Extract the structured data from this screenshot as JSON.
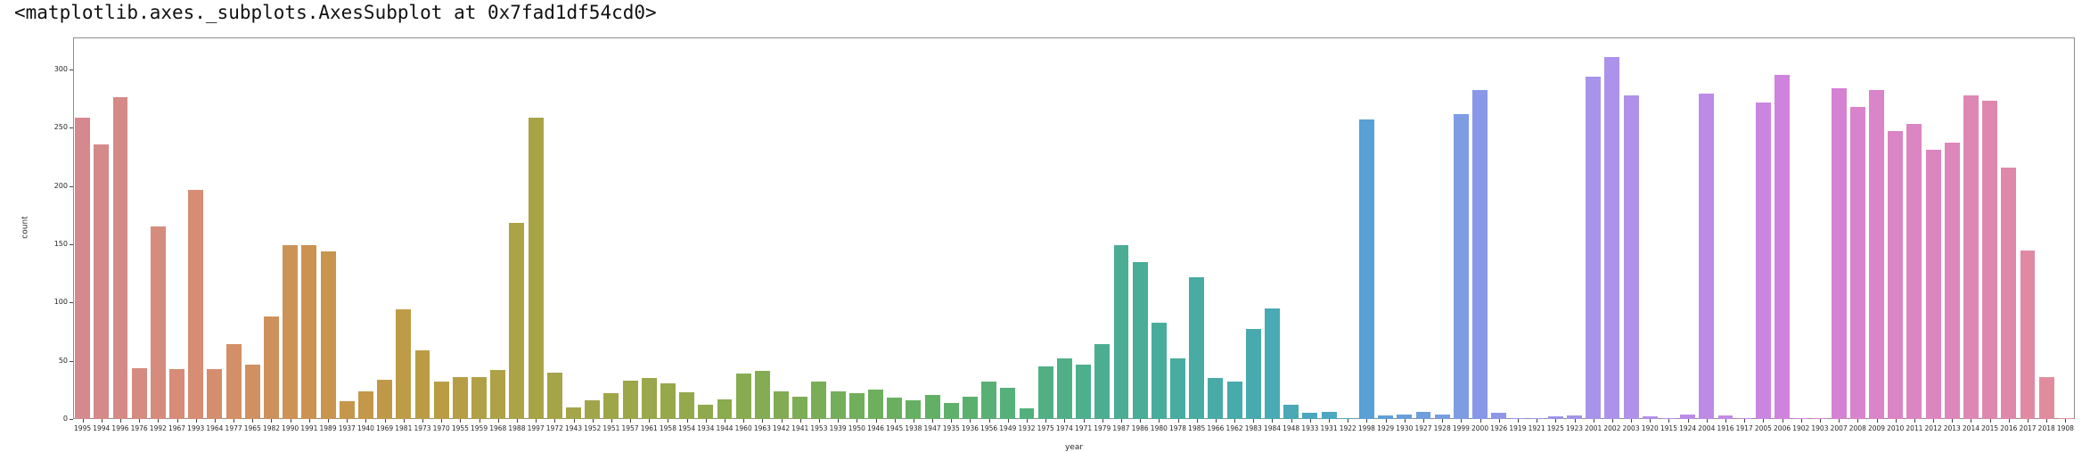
{
  "title": "<matplotlib.axes._subplots.AxesSubplot at 0x7fad1df54cd0>",
  "chart_data": {
    "type": "bar",
    "title": "",
    "xlabel": "year",
    "ylabel": "count",
    "yticks": [
      0,
      50,
      100,
      150,
      200,
      250,
      300
    ],
    "ylim": [
      0,
      327.5
    ],
    "grid": false,
    "legend": "none",
    "categories": [
      "1995",
      "1994",
      "1996",
      "1976",
      "1992",
      "1967",
      "1993",
      "1964",
      "1977",
      "1965",
      "1982",
      "1990",
      "1991",
      "1989",
      "1937",
      "1940",
      "1969",
      "1981",
      "1973",
      "1970",
      "1955",
      "1959",
      "1968",
      "1988",
      "1997",
      "1972",
      "1943",
      "1952",
      "1951",
      "1957",
      "1961",
      "1958",
      "1954",
      "1934",
      "1944",
      "1960",
      "1963",
      "1942",
      "1941",
      "1953",
      "1939",
      "1950",
      "1946",
      "1945",
      "1938",
      "1947",
      "1935",
      "1936",
      "1956",
      "1949",
      "1932",
      "1975",
      "1974",
      "1971",
      "1979",
      "1987",
      "1986",
      "1980",
      "1978",
      "1985",
      "1966",
      "1962",
      "1983",
      "1984",
      "1948",
      "1933",
      "1931",
      "1922",
      "1998",
      "1929",
      "1930",
      "1927",
      "1928",
      "1999",
      "2000",
      "1926",
      "1919",
      "1921",
      "1925",
      "1923",
      "2001",
      "2002",
      "2003",
      "1920",
      "1915",
      "1924",
      "2004",
      "1916",
      "1917",
      "2005",
      "2006",
      "1902",
      "1903",
      "2007",
      "2008",
      "2009",
      "2010",
      "2011",
      "2012",
      "2013",
      "2014",
      "2015",
      "2016",
      "2017",
      "2018",
      "1908"
    ],
    "values": [
      259,
      236,
      276,
      44,
      165,
      43,
      197,
      43,
      64,
      47,
      88,
      149,
      149,
      144,
      15,
      24,
      34,
      94,
      59,
      32,
      36,
      36,
      42,
      168,
      259,
      40,
      10,
      16,
      22,
      33,
      35,
      31,
      23,
      12,
      17,
      39,
      41,
      24,
      19,
      32,
      24,
      22,
      25,
      18,
      16,
      21,
      14,
      19,
      32,
      27,
      9,
      45,
      52,
      47,
      64,
      149,
      135,
      83,
      52,
      122,
      35,
      32,
      77,
      95,
      12,
      5,
      6,
      1,
      257,
      3,
      4,
      6,
      4,
      262,
      282,
      5,
      1,
      1,
      2,
      3,
      294,
      311,
      278,
      2,
      1,
      4,
      279,
      3,
      1,
      272,
      295,
      1,
      1,
      284,
      268,
      282,
      247,
      253,
      231,
      237,
      278,
      273,
      216,
      145,
      36,
      1
    ],
    "palette_anchors": [
      [
        0,
        "#d5898e"
      ],
      [
        6,
        "#d68d74"
      ],
      [
        12,
        "#ca9350"
      ],
      [
        18,
        "#bb9c44"
      ],
      [
        24,
        "#a9a347"
      ],
      [
        31,
        "#97a84b"
      ],
      [
        38,
        "#7dad55"
      ],
      [
        45,
        "#62b065"
      ],
      [
        51,
        "#50b083"
      ],
      [
        57,
        "#48ac9c"
      ],
      [
        63,
        "#48aab3"
      ],
      [
        67,
        "#4da6c4"
      ],
      [
        68,
        "#58a0d6"
      ],
      [
        73,
        "#7d9ce2"
      ],
      [
        74,
        "#8997e8"
      ],
      [
        80,
        "#a893ea"
      ],
      [
        81,
        "#ac92ea"
      ],
      [
        86,
        "#bd8be6"
      ],
      [
        87,
        "#c289e6"
      ],
      [
        90,
        "#cf83de"
      ],
      [
        93,
        "#d682d2"
      ],
      [
        94,
        "#d983cd"
      ],
      [
        99,
        "#dd86bb"
      ],
      [
        103,
        "#e089a3"
      ],
      [
        105,
        "#e28e97"
      ]
    ],
    "bar_width_fraction": 0.8
  }
}
